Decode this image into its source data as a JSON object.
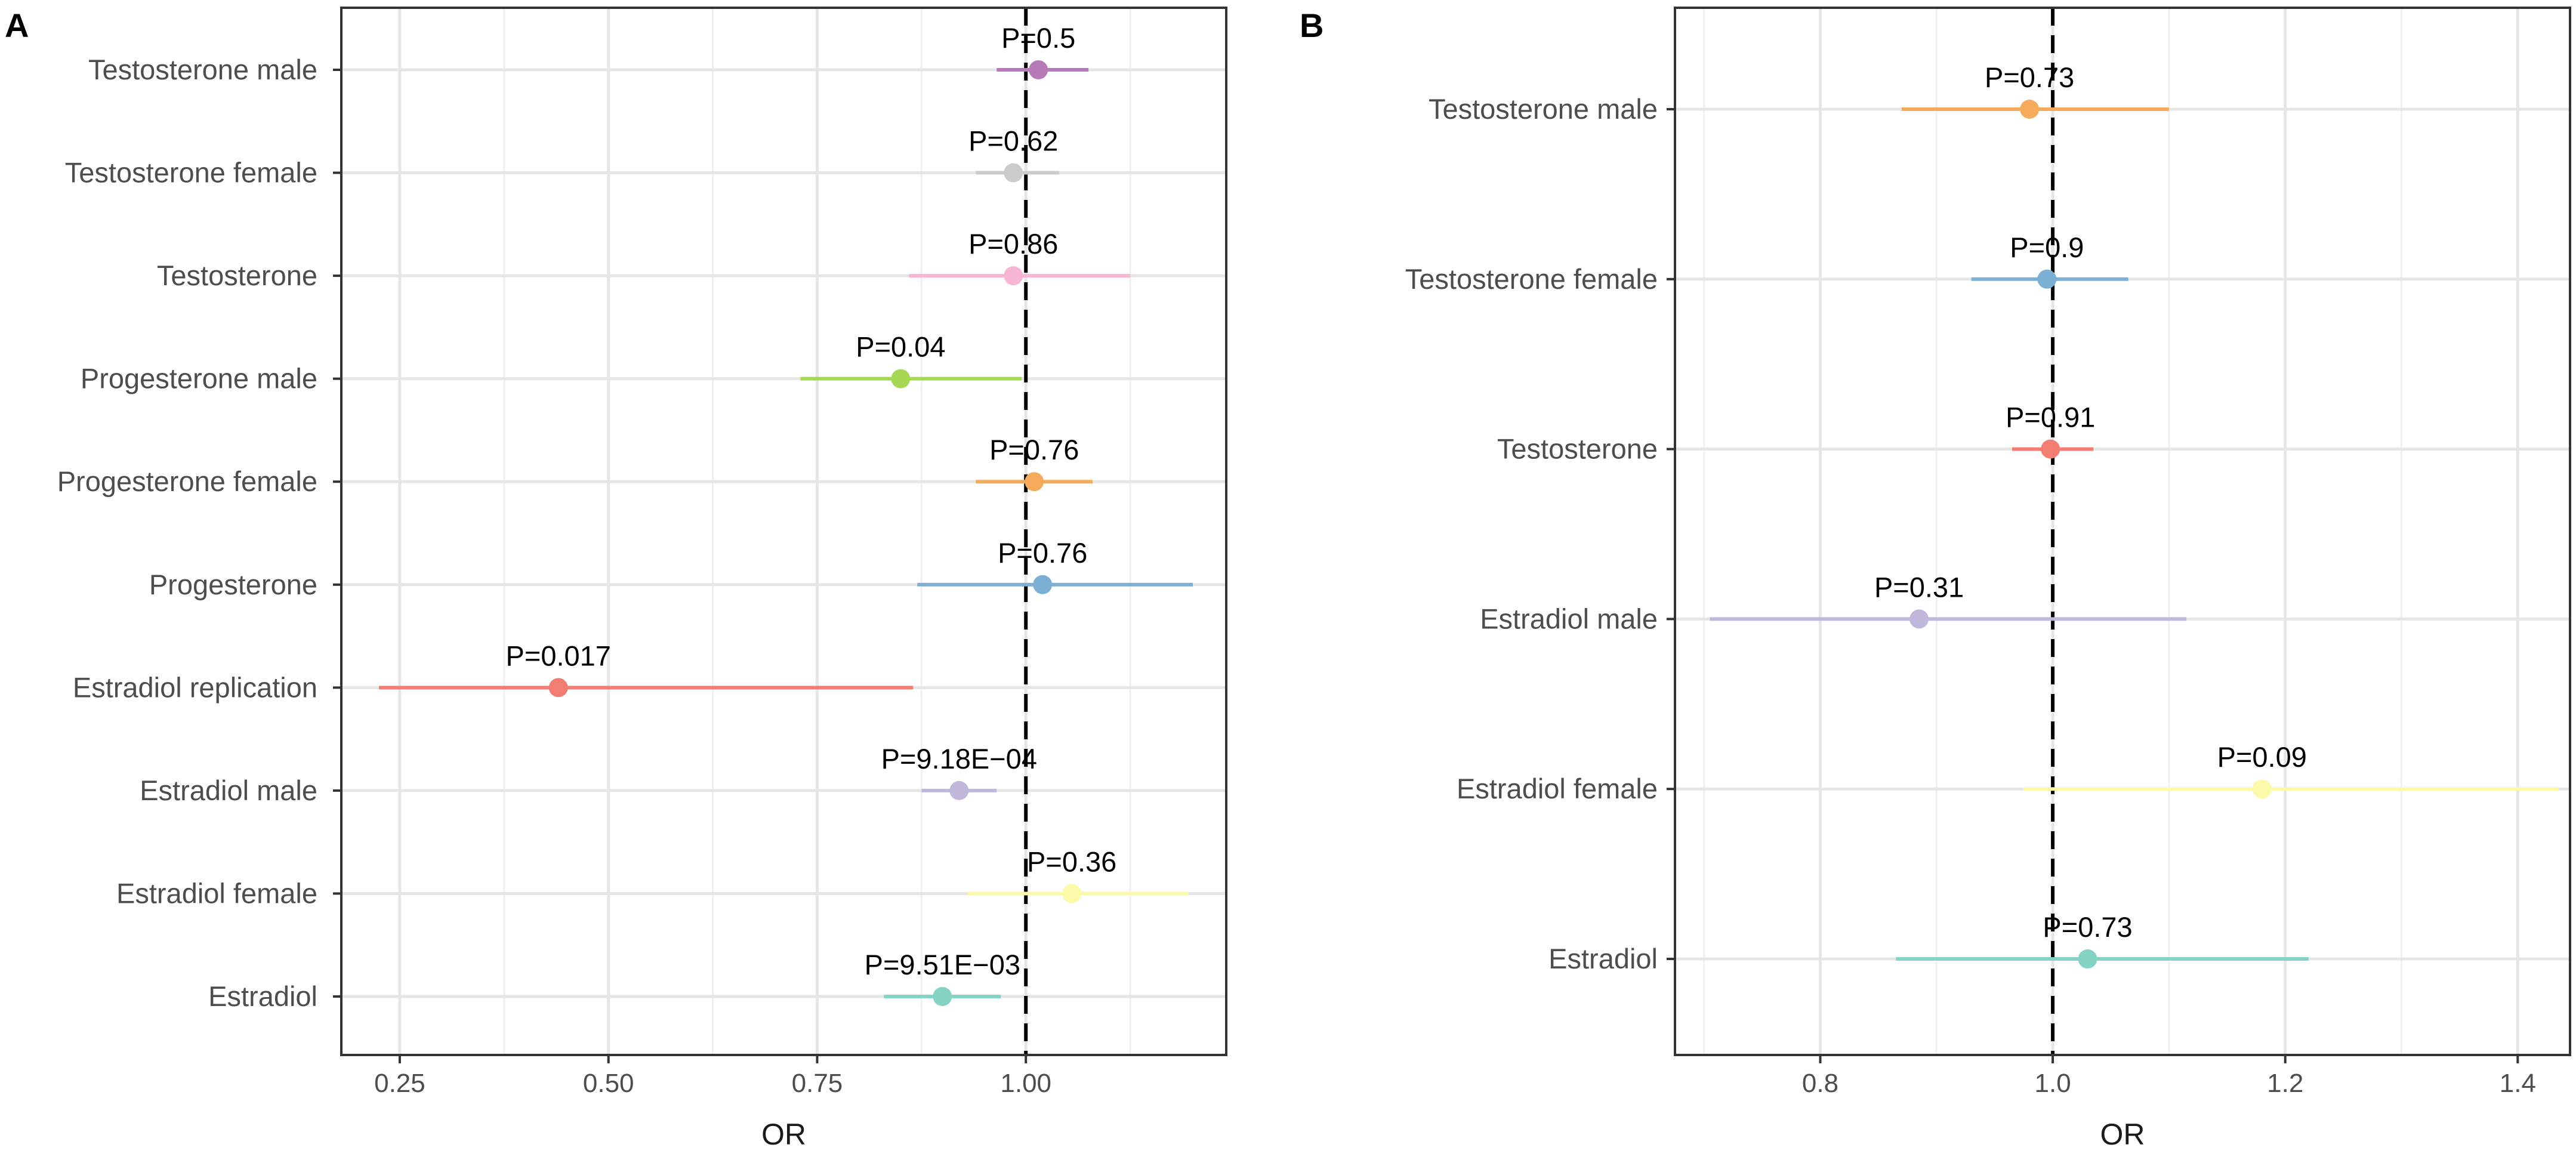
{
  "chart_data": [
    {
      "type": "forest",
      "panel_label": "A",
      "xlabel": "OR",
      "reference_line": 1.0,
      "xlim": [
        0.18,
        1.24
      ],
      "xticks": [
        0.25,
        0.5,
        0.75,
        1.0
      ],
      "xtick_labels": [
        "0.25",
        "0.50",
        "0.75",
        "1.00"
      ],
      "grid": true,
      "rows": [
        {
          "label": "Testosterone male",
          "or": 1.015,
          "lo": 0.965,
          "hi": 1.075,
          "p": "P=0.5",
          "color": "#b77ab8"
        },
        {
          "label": "Testosterone female",
          "or": 0.985,
          "lo": 0.94,
          "hi": 1.04,
          "p": "P=0.62",
          "color": "#cccccc"
        },
        {
          "label": "Testosterone",
          "or": 0.985,
          "lo": 0.86,
          "hi": 1.125,
          "p": "P=0.86",
          "color": "#f9b6d4"
        },
        {
          "label": "Progesterone male",
          "or": 0.85,
          "lo": 0.73,
          "hi": 0.995,
          "p": "P=0.04",
          "color": "#a6d854"
        },
        {
          "label": "Progesterone female",
          "or": 1.01,
          "lo": 0.94,
          "hi": 1.08,
          "p": "P=0.76",
          "color": "#f4ac5c"
        },
        {
          "label": "Progesterone",
          "or": 1.02,
          "lo": 0.87,
          "hi": 1.2,
          "p": "P=0.76",
          "color": "#7bafd4"
        },
        {
          "label": "Estradiol replication",
          "or": 0.44,
          "lo": 0.225,
          "hi": 0.865,
          "p": "P=0.017",
          "color": "#f27d72"
        },
        {
          "label": "Estradiol male",
          "or": 0.92,
          "lo": 0.875,
          "hi": 0.965,
          "p": "P=9.18E−04",
          "color": "#bfb8db"
        },
        {
          "label": "Estradiol female",
          "or": 1.055,
          "lo": 0.93,
          "hi": 1.195,
          "p": "P=0.36",
          "color": "#fafaa8"
        },
        {
          "label": "Estradiol",
          "or": 0.9,
          "lo": 0.83,
          "hi": 0.97,
          "p": "P=9.51E−03",
          "color": "#85d3c5"
        }
      ]
    },
    {
      "type": "forest",
      "panel_label": "B",
      "xlabel": "OR",
      "reference_line": 1.0,
      "xlim": [
        0.675,
        1.445
      ],
      "xticks": [
        0.8,
        1.0,
        1.2,
        1.4
      ],
      "xtick_labels": [
        "0.8",
        "1.0",
        "1.2",
        "1.4"
      ],
      "grid": true,
      "rows": [
        {
          "label": "Testosterone male",
          "or": 0.98,
          "lo": 0.87,
          "hi": 1.1,
          "p": "P=0.73",
          "color": "#f4ac5c"
        },
        {
          "label": "Testosterone female",
          "or": 0.995,
          "lo": 0.93,
          "hi": 1.065,
          "p": "P=0.9",
          "color": "#7bafd4"
        },
        {
          "label": "Testosterone",
          "or": 0.998,
          "lo": 0.965,
          "hi": 1.035,
          "p": "P=0.91",
          "color": "#f27d72"
        },
        {
          "label": "Estradiol male",
          "or": 0.885,
          "lo": 0.705,
          "hi": 1.115,
          "p": "P=0.31",
          "color": "#bfb8db"
        },
        {
          "label": "Estradiol female",
          "or": 1.18,
          "lo": 0.975,
          "hi": 1.435,
          "p": "P=0.09",
          "color": "#fafaa8"
        },
        {
          "label": "Estradiol",
          "or": 1.03,
          "lo": 0.865,
          "hi": 1.22,
          "p": "P=0.73",
          "color": "#85d3c5"
        }
      ]
    }
  ]
}
